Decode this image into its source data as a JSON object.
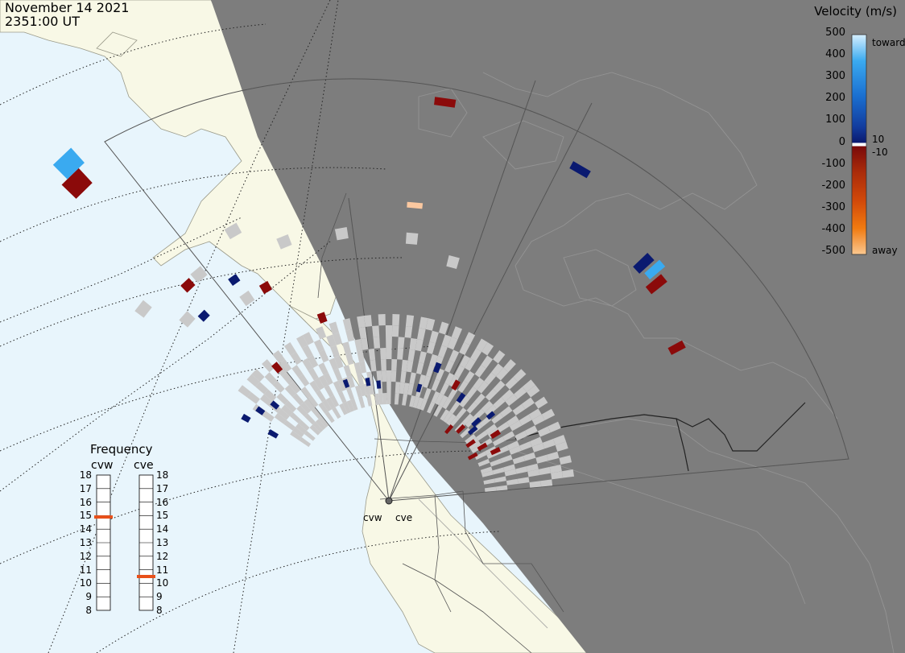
{
  "header": {
    "date": "November 14 2021",
    "time": "2351:00 UT"
  },
  "colorbar": {
    "title": "Velocity (m/s)",
    "ticks": [
      "500",
      "400",
      "300",
      "200",
      "100",
      "0",
      "-100",
      "-200",
      "-300",
      "-400",
      "-500"
    ],
    "inner_labels": [
      "10",
      "-10"
    ],
    "toward_label": "toward",
    "away_label": "away",
    "gradient_colors": [
      "#d6efff",
      "#3aaaf0",
      "#1a6fd0",
      "#123c9e",
      "#0a1a70",
      "#7a0a0a",
      "#a82a0a",
      "#d24a0a",
      "#f07a10",
      "#fbc890"
    ]
  },
  "frequency_panel": {
    "title": "Frequency",
    "radars": [
      {
        "name": "cvw",
        "frequency_mhz": 14.9
      },
      {
        "name": "cve",
        "frequency_mhz": 10.5
      }
    ],
    "scale_mhz": [
      18,
      17,
      16,
      15,
      14,
      13,
      12,
      11,
      10,
      9,
      8
    ]
  },
  "radar_sites": [
    {
      "name": "cvw"
    },
    {
      "name": "cve"
    }
  ],
  "colors": {
    "ocean": "#e8f5fc",
    "land": "#f8f8e6",
    "night": "#7d7d7d",
    "ground_scatter": "#c9c9c9",
    "indicator": "#e8501a"
  }
}
